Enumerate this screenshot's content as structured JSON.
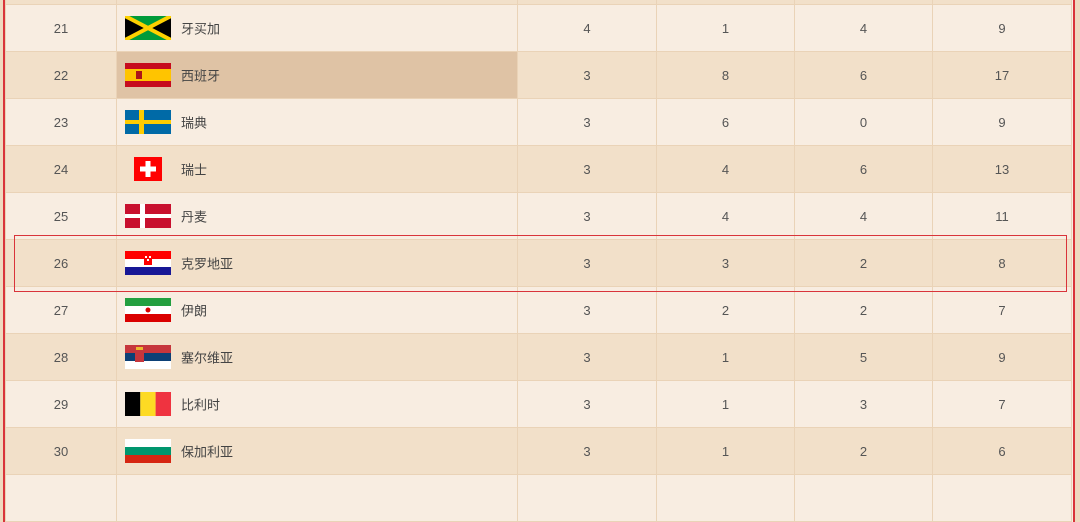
{
  "colors": {
    "row_light": "#f8ede1",
    "row_dark": "#f2e0c9",
    "hover": "#dfc3a5",
    "border_accent": "#d9343a"
  },
  "rows": [
    {
      "rank": "",
      "country": "",
      "flag": "",
      "gold": "",
      "silver": "",
      "bronze": "",
      "total": ""
    },
    {
      "rank": "21",
      "country": "牙买加",
      "flag": "jamaica-flag-icon",
      "gold": "4",
      "silver": "1",
      "bronze": "4",
      "total": "9"
    },
    {
      "rank": "22",
      "country": "西班牙",
      "flag": "spain-flag-icon",
      "gold": "3",
      "silver": "8",
      "bronze": "6",
      "total": "17"
    },
    {
      "rank": "23",
      "country": "瑞典",
      "flag": "sweden-flag-icon",
      "gold": "3",
      "silver": "6",
      "bronze": "0",
      "total": "9"
    },
    {
      "rank": "24",
      "country": "瑞士",
      "flag": "switzerland-flag-icon",
      "gold": "3",
      "silver": "4",
      "bronze": "6",
      "total": "13"
    },
    {
      "rank": "25",
      "country": "丹麦",
      "flag": "denmark-flag-icon",
      "gold": "3",
      "silver": "4",
      "bronze": "4",
      "total": "11"
    },
    {
      "rank": "26",
      "country": "克罗地亚",
      "flag": "croatia-flag-icon",
      "gold": "3",
      "silver": "3",
      "bronze": "2",
      "total": "8"
    },
    {
      "rank": "27",
      "country": "伊朗",
      "flag": "iran-flag-icon",
      "gold": "3",
      "silver": "2",
      "bronze": "2",
      "total": "7"
    },
    {
      "rank": "28",
      "country": "塞尔维亚",
      "flag": "serbia-flag-icon",
      "gold": "3",
      "silver": "1",
      "bronze": "5",
      "total": "9"
    },
    {
      "rank": "29",
      "country": "比利时",
      "flag": "belgium-flag-icon",
      "gold": "3",
      "silver": "1",
      "bronze": "3",
      "total": "7"
    },
    {
      "rank": "30",
      "country": "保加利亚",
      "flag": "bulgaria-flag-icon",
      "gold": "3",
      "silver": "1",
      "bronze": "2",
      "total": "6"
    },
    {
      "rank": "",
      "country": "",
      "flag": "",
      "gold": "",
      "silver": "",
      "bronze": "",
      "total": ""
    }
  ]
}
